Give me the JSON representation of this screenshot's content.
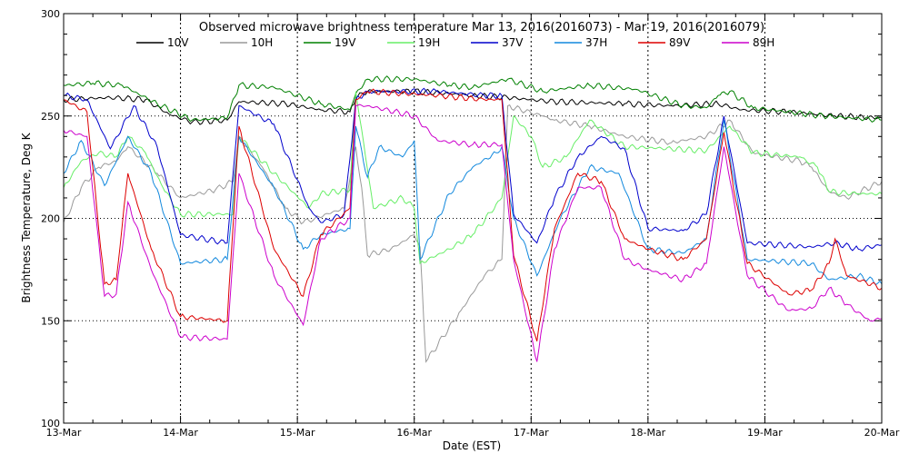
{
  "chart_data": {
    "type": "line",
    "title": "Observed microwave brightness temperature Mar 13, 2016(2016073) - Mar 19, 2016(2016079)",
    "xlabel": "Date (EST)",
    "ylabel": "Brightness Temperature, Deg K",
    "xlim": [
      0,
      7
    ],
    "ylim": [
      100,
      300
    ],
    "x_ticks": [
      0,
      1,
      2,
      3,
      4,
      5,
      6,
      7
    ],
    "x_tick_labels": [
      "13-Mar",
      "14-Mar",
      "15-Mar",
      "16-Mar",
      "17-Mar",
      "18-Mar",
      "19-Mar",
      "20-Mar"
    ],
    "y_ticks": [
      100,
      150,
      200,
      250,
      300
    ],
    "y_tick_labels": [
      "100",
      "150",
      "200",
      "250",
      "300"
    ],
    "y_gridlines": [
      150,
      200,
      250
    ],
    "x_gridlines": [
      1,
      2,
      3,
      4,
      5,
      6
    ],
    "legend": "top",
    "series": [
      {
        "name": "10V",
        "color": "#000000",
        "points": [
          [
            0,
            258
          ],
          [
            0.4,
            259
          ],
          [
            0.7,
            258
          ],
          [
            0.9,
            251
          ],
          [
            1.1,
            247
          ],
          [
            1.4,
            248
          ],
          [
            1.5,
            257
          ],
          [
            1.9,
            256
          ],
          [
            2.2,
            253
          ],
          [
            2.45,
            252
          ],
          [
            2.5,
            259
          ],
          [
            2.6,
            262
          ],
          [
            3.0,
            262
          ],
          [
            3.3,
            261
          ],
          [
            3.5,
            260
          ],
          [
            3.8,
            259
          ],
          [
            4.2,
            257
          ],
          [
            4.8,
            256
          ],
          [
            5.2,
            255
          ],
          [
            5.6,
            256
          ],
          [
            5.8,
            253
          ],
          [
            6.2,
            252
          ],
          [
            6.6,
            250
          ],
          [
            7,
            249
          ]
        ]
      },
      {
        "name": "10H",
        "color": "#999999",
        "points": [
          [
            0,
            198
          ],
          [
            0.15,
            215
          ],
          [
            0.3,
            225
          ],
          [
            0.45,
            228
          ],
          [
            0.55,
            235
          ],
          [
            0.65,
            230
          ],
          [
            0.8,
            222
          ],
          [
            1.0,
            210
          ],
          [
            1.3,
            214
          ],
          [
            1.45,
            218
          ],
          [
            1.5,
            240
          ],
          [
            1.7,
            225
          ],
          [
            1.9,
            205
          ],
          [
            2.05,
            198
          ],
          [
            2.15,
            200
          ],
          [
            2.4,
            205
          ],
          [
            2.5,
            235
          ],
          [
            2.55,
            215
          ],
          [
            2.6,
            182
          ],
          [
            2.8,
            185
          ],
          [
            3.0,
            192
          ],
          [
            3.05,
            186
          ],
          [
            3.1,
            130
          ],
          [
            3.4,
            155
          ],
          [
            3.6,
            172
          ],
          [
            3.75,
            180
          ],
          [
            3.8,
            255
          ],
          [
            4.1,
            250
          ],
          [
            4.2,
            248
          ],
          [
            4.5,
            245
          ],
          [
            4.8,
            240
          ],
          [
            5.2,
            237
          ],
          [
            5.5,
            240
          ],
          [
            5.7,
            248
          ],
          [
            5.9,
            232
          ],
          [
            6.3,
            228
          ],
          [
            6.4,
            225
          ],
          [
            6.55,
            213
          ],
          [
            6.7,
            210
          ],
          [
            7,
            218
          ]
        ]
      },
      {
        "name": "19V",
        "color": "#008000",
        "points": [
          [
            0,
            265
          ],
          [
            0.25,
            266
          ],
          [
            0.5,
            265
          ],
          [
            0.8,
            256
          ],
          [
            1.1,
            248
          ],
          [
            1.4,
            249
          ],
          [
            1.5,
            265
          ],
          [
            1.8,
            264
          ],
          [
            2.2,
            256
          ],
          [
            2.45,
            253
          ],
          [
            2.5,
            261
          ],
          [
            2.6,
            268
          ],
          [
            3.0,
            268
          ],
          [
            3.3,
            265
          ],
          [
            3.5,
            264
          ],
          [
            3.8,
            268
          ],
          [
            4.1,
            262
          ],
          [
            4.5,
            265
          ],
          [
            4.9,
            263
          ],
          [
            5.3,
            255
          ],
          [
            5.5,
            254
          ],
          [
            5.6,
            260
          ],
          [
            5.7,
            262
          ],
          [
            5.9,
            254
          ],
          [
            6.5,
            250
          ],
          [
            7,
            248
          ]
        ]
      },
      {
        "name": "19H",
        "color": "#66ee66",
        "points": [
          [
            0,
            215
          ],
          [
            0.15,
            228
          ],
          [
            0.3,
            232
          ],
          [
            0.45,
            230
          ],
          [
            0.55,
            240
          ],
          [
            0.7,
            232
          ],
          [
            0.85,
            215
          ],
          [
            1.0,
            202
          ],
          [
            1.3,
            202
          ],
          [
            1.45,
            202
          ],
          [
            1.5,
            240
          ],
          [
            1.8,
            222
          ],
          [
            2.1,
            205
          ],
          [
            2.2,
            212
          ],
          [
            2.45,
            214
          ],
          [
            2.5,
            262
          ],
          [
            2.65,
            205
          ],
          [
            2.9,
            210
          ],
          [
            3.0,
            205
          ],
          [
            3.05,
            178
          ],
          [
            3.3,
            185
          ],
          [
            3.5,
            192
          ],
          [
            3.75,
            210
          ],
          [
            3.85,
            250
          ],
          [
            4.0,
            240
          ],
          [
            4.1,
            225
          ],
          [
            4.3,
            230
          ],
          [
            4.5,
            248
          ],
          [
            4.8,
            235
          ],
          [
            5.2,
            234
          ],
          [
            5.5,
            233
          ],
          [
            5.7,
            245
          ],
          [
            5.9,
            232
          ],
          [
            6.3,
            230
          ],
          [
            6.45,
            225
          ],
          [
            6.55,
            213
          ],
          [
            6.8,
            212
          ],
          [
            7,
            212
          ]
        ]
      },
      {
        "name": "37V",
        "color": "#0000cc",
        "points": [
          [
            0,
            260
          ],
          [
            0.2,
            258
          ],
          [
            0.4,
            234
          ],
          [
            0.6,
            255
          ],
          [
            0.8,
            235
          ],
          [
            1.0,
            192
          ],
          [
            1.4,
            188
          ],
          [
            1.5,
            255
          ],
          [
            1.8,
            246
          ],
          [
            2.1,
            205
          ],
          [
            2.2,
            198
          ],
          [
            2.4,
            202
          ],
          [
            2.5,
            258
          ],
          [
            2.6,
            262
          ],
          [
            3.2,
            262
          ],
          [
            3.6,
            260
          ],
          [
            3.75,
            260
          ],
          [
            3.85,
            202
          ],
          [
            4.05,
            188
          ],
          [
            4.2,
            210
          ],
          [
            4.4,
            230
          ],
          [
            4.6,
            240
          ],
          [
            4.8,
            234
          ],
          [
            5.0,
            195
          ],
          [
            5.3,
            194
          ],
          [
            5.5,
            202
          ],
          [
            5.65,
            250
          ],
          [
            5.85,
            188
          ],
          [
            6.4,
            186
          ],
          [
            6.6,
            188
          ],
          [
            6.8,
            185
          ],
          [
            7,
            187
          ]
        ]
      },
      {
        "name": "37H",
        "color": "#1188dd",
        "points": [
          [
            0,
            222
          ],
          [
            0.15,
            238
          ],
          [
            0.35,
            216
          ],
          [
            0.55,
            240
          ],
          [
            0.75,
            222
          ],
          [
            1.0,
            178
          ],
          [
            1.4,
            180
          ],
          [
            1.5,
            240
          ],
          [
            1.8,
            215
          ],
          [
            2.05,
            185
          ],
          [
            2.2,
            192
          ],
          [
            2.45,
            195
          ],
          [
            2.5,
            245
          ],
          [
            2.6,
            220
          ],
          [
            2.7,
            235
          ],
          [
            2.9,
            230
          ],
          [
            3.0,
            238
          ],
          [
            3.05,
            180
          ],
          [
            3.3,
            212
          ],
          [
            3.5,
            225
          ],
          [
            3.7,
            232
          ],
          [
            3.75,
            235
          ],
          [
            3.85,
            200
          ],
          [
            4.05,
            172
          ],
          [
            4.25,
            200
          ],
          [
            4.5,
            225
          ],
          [
            4.75,
            222
          ],
          [
            5.0,
            185
          ],
          [
            5.3,
            183
          ],
          [
            5.5,
            190
          ],
          [
            5.65,
            248
          ],
          [
            5.85,
            180
          ],
          [
            6.4,
            178
          ],
          [
            6.55,
            170
          ],
          [
            6.8,
            172
          ],
          [
            7,
            168
          ]
        ]
      },
      {
        "name": "89V",
        "color": "#dd0000",
        "points": [
          [
            0,
            258
          ],
          [
            0.2,
            252
          ],
          [
            0.35,
            168
          ],
          [
            0.45,
            170
          ],
          [
            0.55,
            222
          ],
          [
            0.75,
            185
          ],
          [
            1.0,
            152
          ],
          [
            1.4,
            150
          ],
          [
            1.5,
            245
          ],
          [
            1.8,
            185
          ],
          [
            2.05,
            162
          ],
          [
            2.2,
            192
          ],
          [
            2.45,
            205
          ],
          [
            2.5,
            258
          ],
          [
            2.6,
            262
          ],
          [
            3.2,
            260
          ],
          [
            3.6,
            258
          ],
          [
            3.75,
            258
          ],
          [
            3.85,
            182
          ],
          [
            4.05,
            140
          ],
          [
            4.2,
            195
          ],
          [
            4.4,
            222
          ],
          [
            4.6,
            218
          ],
          [
            4.8,
            190
          ],
          [
            5.0,
            185
          ],
          [
            5.3,
            180
          ],
          [
            5.5,
            190
          ],
          [
            5.65,
            242
          ],
          [
            5.85,
            178
          ],
          [
            6.2,
            163
          ],
          [
            6.4,
            165
          ],
          [
            6.55,
            178
          ],
          [
            6.6,
            190
          ],
          [
            6.7,
            172
          ],
          [
            7,
            166
          ]
        ]
      },
      {
        "name": "89H",
        "color": "#cc00cc",
        "points": [
          [
            0,
            243
          ],
          [
            0.2,
            240
          ],
          [
            0.35,
            162
          ],
          [
            0.45,
            163
          ],
          [
            0.55,
            208
          ],
          [
            0.75,
            175
          ],
          [
            1.0,
            142
          ],
          [
            1.4,
            141
          ],
          [
            1.5,
            222
          ],
          [
            1.8,
            172
          ],
          [
            2.05,
            148
          ],
          [
            2.2,
            190
          ],
          [
            2.45,
            200
          ],
          [
            2.5,
            255
          ],
          [
            2.6,
            255
          ],
          [
            3.0,
            250
          ],
          [
            3.2,
            238
          ],
          [
            3.5,
            236
          ],
          [
            3.75,
            236
          ],
          [
            3.85,
            180
          ],
          [
            4.05,
            130
          ],
          [
            4.2,
            185
          ],
          [
            4.4,
            215
          ],
          [
            4.6,
            215
          ],
          [
            4.8,
            180
          ],
          [
            5.0,
            175
          ],
          [
            5.3,
            170
          ],
          [
            5.5,
            178
          ],
          [
            5.65,
            235
          ],
          [
            5.85,
            172
          ],
          [
            6.2,
            155
          ],
          [
            6.4,
            156
          ],
          [
            6.55,
            166
          ],
          [
            6.7,
            158
          ],
          [
            6.9,
            150
          ],
          [
            7,
            151
          ]
        ]
      }
    ]
  }
}
